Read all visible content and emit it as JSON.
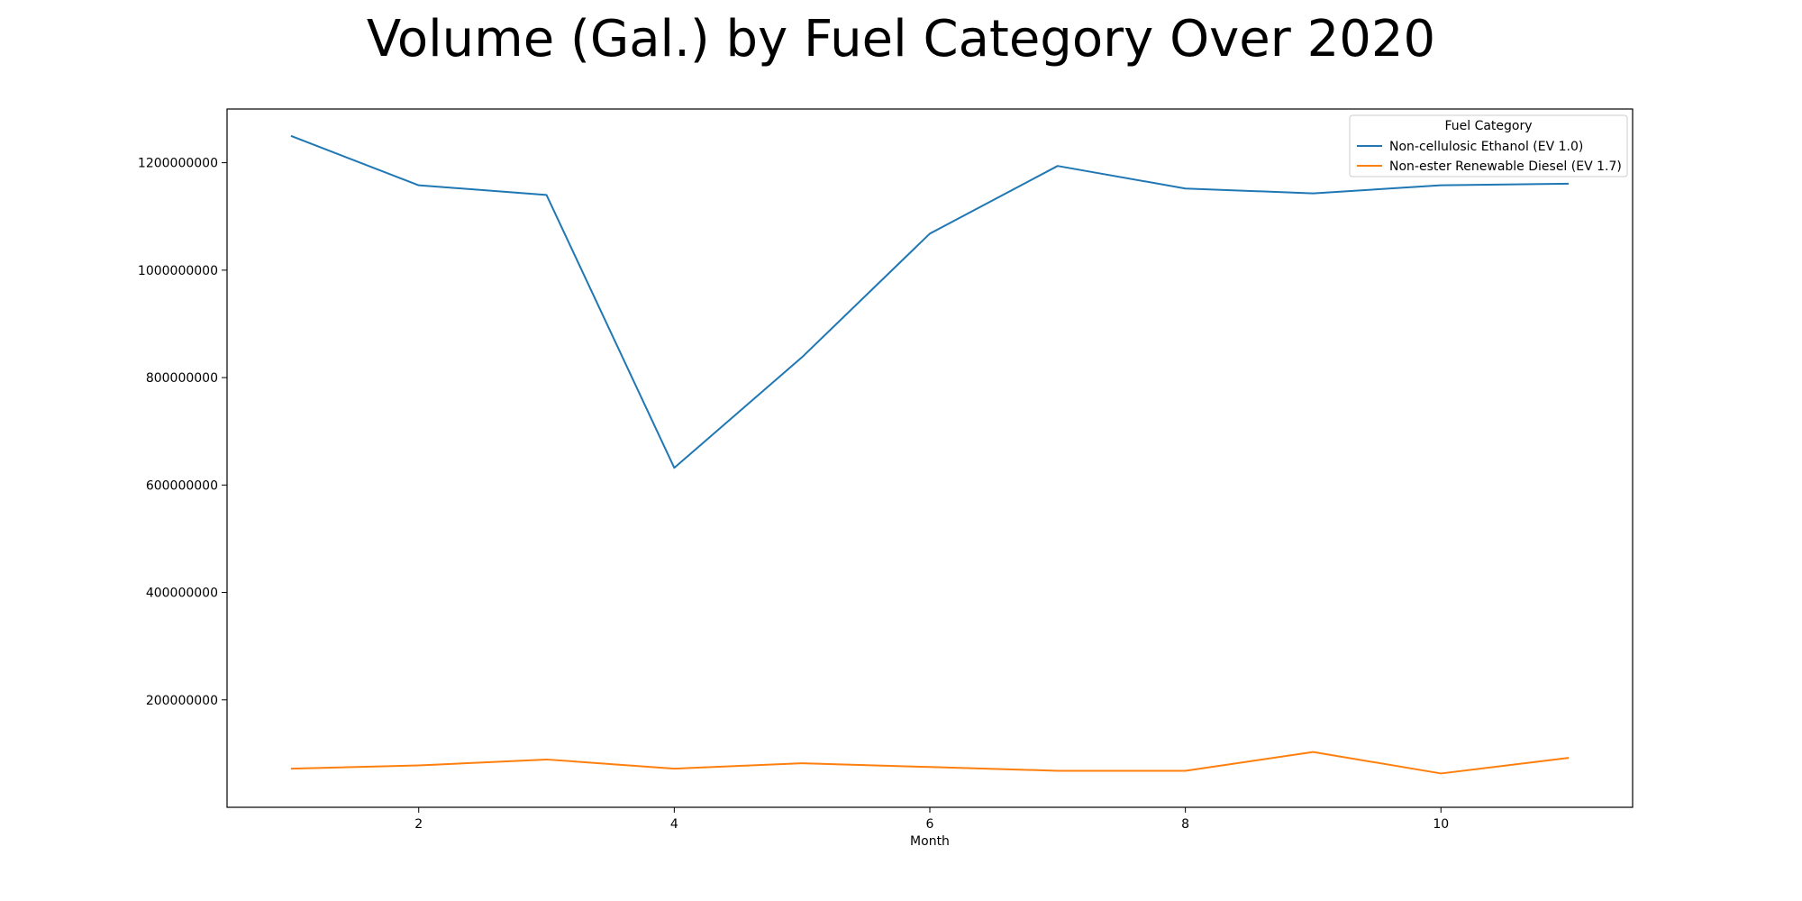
{
  "chart_data": {
    "type": "line",
    "title": "Volume (Gal.) by Fuel Category Over 2020",
    "xlabel": "Month",
    "ylabel": "",
    "xlim": [
      0.5,
      11.5
    ],
    "ylim": [
      0,
      1300000000
    ],
    "xticks": [
      2,
      4,
      6,
      8,
      10
    ],
    "yticks": [
      200000000,
      400000000,
      600000000,
      800000000,
      1000000000,
      1200000000
    ],
    "grid": false,
    "legend": {
      "title": "Fuel Category",
      "placement": "top-right"
    },
    "x": [
      1,
      2,
      3,
      4,
      5,
      6,
      7,
      8,
      9,
      10,
      11
    ],
    "series": [
      {
        "name": "Non-cellulosic Ethanol (EV 1.0)",
        "color": "#1f77b4",
        "values": [
          1250000000,
          1158000000,
          1140000000,
          632000000,
          838000000,
          1068000000,
          1194000000,
          1152000000,
          1143000000,
          1158000000,
          1161000000
        ]
      },
      {
        "name": "Non-ester Renewable Diesel (EV 1.7)",
        "color": "#ff7f0e",
        "values": [
          72000000,
          78000000,
          89000000,
          72000000,
          82000000,
          75000000,
          68000000,
          68000000,
          103000000,
          63000000,
          92000000
        ]
      }
    ]
  }
}
